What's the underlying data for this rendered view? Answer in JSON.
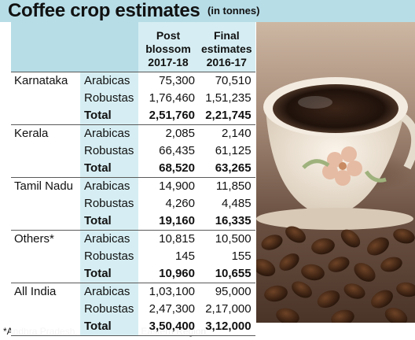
{
  "title": "Coffee crop estimates",
  "subtitle": "(in tonnes)",
  "columns": {
    "post_blossom": [
      "Post",
      "blossom",
      "2017-18"
    ],
    "final": [
      "Final",
      "estimates",
      "2016-17"
    ]
  },
  "rows": [
    {
      "state": "Karnataka",
      "type": "Arabicas",
      "post": "75,300",
      "final": "70,510",
      "total": false
    },
    {
      "state": "",
      "type": "Robustas",
      "post": "1,76,460",
      "final": "1,51,235",
      "total": false
    },
    {
      "state": "",
      "type": "Total",
      "post": "2,51,760",
      "final": "2,21,745",
      "total": true
    },
    {
      "state": "Kerala",
      "type": "Arabicas",
      "post": "2,085",
      "final": "2,140",
      "total": false
    },
    {
      "state": "",
      "type": "Robustas",
      "post": "66,435",
      "final": "61,125",
      "total": false
    },
    {
      "state": "",
      "type": "Total",
      "post": "68,520",
      "final": "63,265",
      "total": true
    },
    {
      "state": "Tamil Nadu",
      "type": "Arabicas",
      "post": "14,900",
      "final": "11,850",
      "total": false
    },
    {
      "state": "",
      "type": "Robustas",
      "post": "4,260",
      "final": "4,485",
      "total": false
    },
    {
      "state": "",
      "type": "Total",
      "post": "19,160",
      "final": "16,335",
      "total": true
    },
    {
      "state": "Others*",
      "type": "Arabicas",
      "post": "10,815",
      "final": "10,500",
      "total": false
    },
    {
      "state": "",
      "type": "Robustas",
      "post": "145",
      "final": "155",
      "total": false
    },
    {
      "state": "",
      "type": "Total",
      "post": "10,960",
      "final": "10,655",
      "total": true
    },
    {
      "state": "All India",
      "type": "Arabicas",
      "post": "1,03,100",
      "final": "95,000",
      "total": false
    },
    {
      "state": "",
      "type": "Robustas",
      "post": "2,47,300",
      "final": "2,17,000",
      "total": false
    },
    {
      "state": "",
      "type": "Total",
      "post": "3,50,400",
      "final": "3,12,000",
      "total": true
    }
  ],
  "footnote": "*Andhra Pradesh, Odisha, North Eastern Region",
  "colors": {
    "header_band": "#b7dde7",
    "type_column": "#d6eef3"
  }
}
